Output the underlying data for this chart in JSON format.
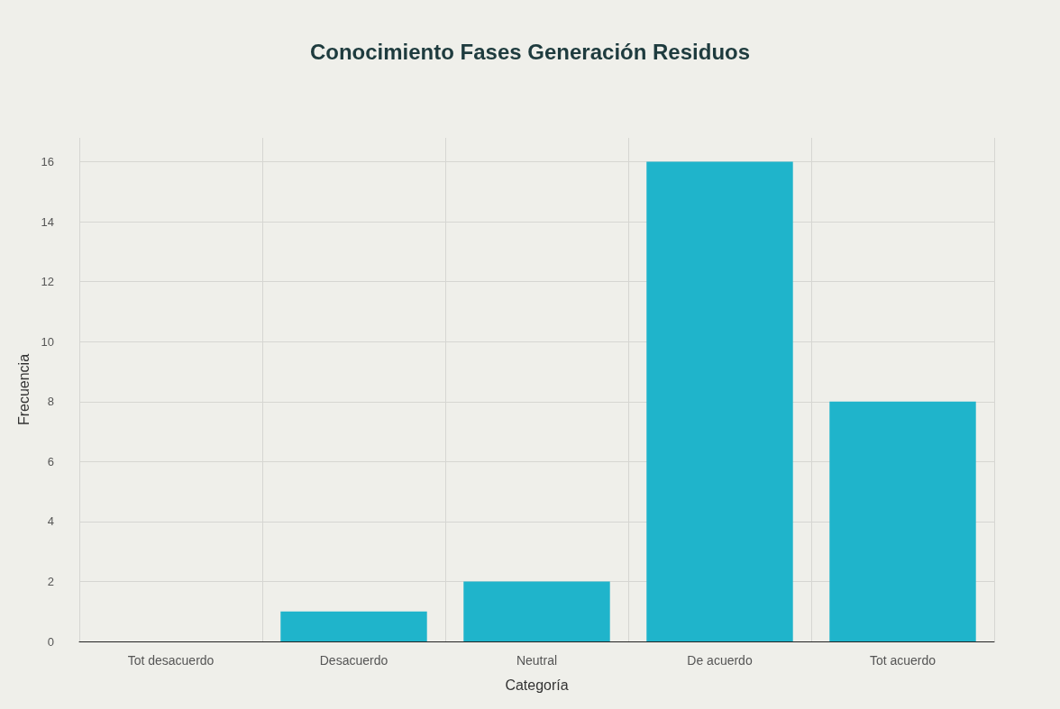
{
  "chart_data": {
    "type": "bar",
    "title": "Conocimiento Fases Generación Residuos",
    "xlabel": "Categoría",
    "ylabel": "Frecuencia",
    "categories": [
      "Tot desacuerdo",
      "Desacuerdo",
      "Neutral",
      "De acuerdo",
      "Tot acuerdo"
    ],
    "values": [
      0,
      1,
      2,
      16,
      8
    ],
    "color": "#1fb4cb",
    "ylim": [
      0,
      16.8
    ],
    "yticks": [
      0,
      2,
      4,
      6,
      8,
      10,
      12,
      14,
      16
    ],
    "grid": true
  }
}
